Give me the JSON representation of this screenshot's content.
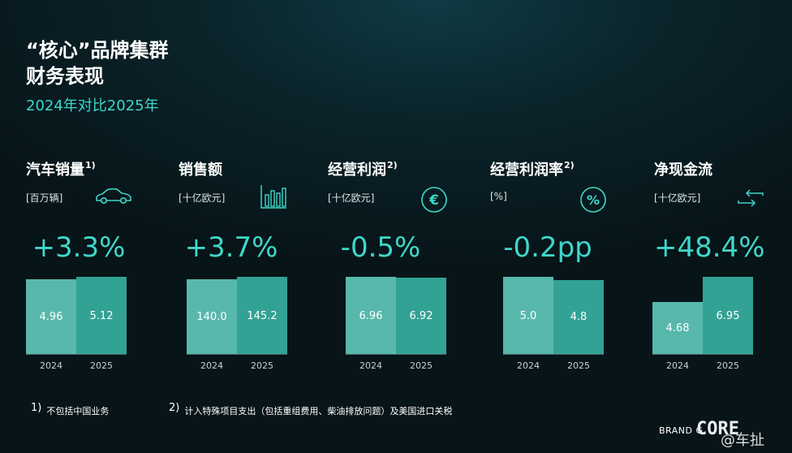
{
  "header": {
    "title_line1": "“核心”品牌集群",
    "title_line2": "财务表现",
    "subtitle": "2024年对比2025年"
  },
  "kpis": [
    {
      "title": "汽车销量",
      "note": "1)",
      "unit": "[百万辆]",
      "icon": "car-icon",
      "change": "+3.3%"
    },
    {
      "title": "销售额",
      "note": "",
      "unit": "[十亿欧元]",
      "icon": "bar-chart-icon",
      "change": "+3.7%"
    },
    {
      "title": "经营利润",
      "note": "2)",
      "unit": "[十亿欧元]",
      "icon": "euro-icon",
      "change": "-0.5%"
    },
    {
      "title": "经营利润率",
      "note": "2)",
      "unit": "[%]",
      "icon": "percent-icon",
      "change": "-0.2pp"
    },
    {
      "title": "净现金流",
      "note": "",
      "unit": "[十亿欧元]",
      "icon": "cash-flow-icon",
      "change": "+48.4%"
    }
  ],
  "chart_data": [
    {
      "type": "bar",
      "categories": [
        "2024",
        "2025"
      ],
      "values": [
        4.96,
        5.12
      ],
      "value_labels": [
        "4.96",
        "5.12"
      ]
    },
    {
      "type": "bar",
      "categories": [
        "2024",
        "2025"
      ],
      "values": [
        140.0,
        145.2
      ],
      "value_labels": [
        "140.0",
        "145.2"
      ]
    },
    {
      "type": "bar",
      "categories": [
        "2024",
        "2025"
      ],
      "values": [
        6.96,
        6.92
      ],
      "value_labels": [
        "6.96",
        "6.92"
      ]
    },
    {
      "type": "bar",
      "categories": [
        "2024",
        "2025"
      ],
      "values": [
        5.0,
        4.8
      ],
      "value_labels": [
        "5.0",
        "4.8"
      ]
    },
    {
      "type": "bar",
      "categories": [
        "2024",
        "2025"
      ],
      "values": [
        4.68,
        6.95
      ],
      "value_labels": [
        "4.68",
        "6.95"
      ]
    }
  ],
  "footnotes": [
    {
      "num": "1)",
      "text": "不包括中国业务"
    },
    {
      "num": "2)",
      "text": "计入特殊项目支出（包括重组费用、柴油排放问题）及美国进口关税"
    }
  ],
  "branding": {
    "brand_text": "BRAND G",
    "core_text": "CORE",
    "watermark": "@车扯"
  },
  "colors": {
    "accent": "#3fd7c9",
    "bar_2024": "#58b8ac",
    "bar_2025": "#32a294"
  }
}
